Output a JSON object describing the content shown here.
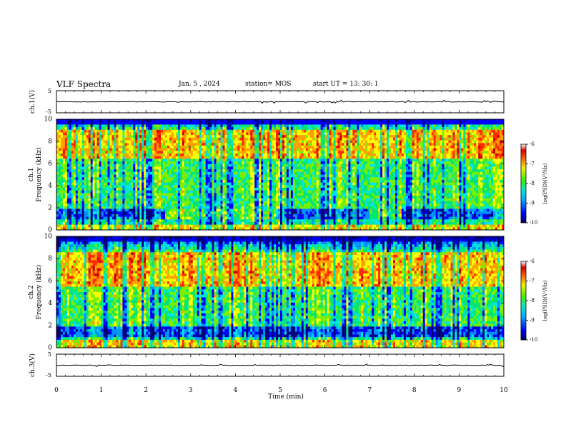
{
  "header": {
    "title": "VLF Spectra",
    "date": "Jan. 5 , 2024",
    "station": "station= MOS",
    "start_ut": "start UT = 13: 30: 1"
  },
  "chart_data": [
    {
      "type": "line",
      "ylabel": "ch.1(V)",
      "ylim": [
        -5,
        5
      ],
      "yticks": [
        "5",
        "-5"
      ],
      "xlim": [
        0,
        10
      ],
      "series": [
        {
          "values_approx": "near 0 V, low-amplitude trace"
        }
      ]
    },
    {
      "type": "heatmap",
      "ylabel": "ch.1\nFrequency (kHz)",
      "ylabel_lines": [
        "ch.1",
        "Frequency (kHz)"
      ],
      "yticks": [
        "0",
        "2",
        "4",
        "6",
        "8",
        "10"
      ],
      "ylim": [
        0,
        10
      ],
      "xlim": [
        0,
        10
      ],
      "colorbar": {
        "label": "log(PSD)(V²/Hz)",
        "ticks": [
          "-6",
          "-7",
          "-8",
          "-9",
          "-10"
        ],
        "range": [
          -10,
          -6
        ]
      },
      "features": {
        "strong_band_khz": [
          6.5,
          9
        ],
        "low_band_khz": [
          0,
          0.5
        ],
        "quiet_band_khz": [
          1,
          2
        ],
        "quiet_band_gaps_min": [
          [
            2.4,
            4.9
          ],
          [
            7.0,
            7.7
          ]
        ]
      }
    },
    {
      "type": "heatmap",
      "ylabel": "ch.2\nFrequency (kHz)",
      "ylabel_lines": [
        "ch.2",
        "Frequency (kHz)"
      ],
      "yticks": [
        "0",
        "2",
        "4",
        "6",
        "8",
        "10"
      ],
      "ylim": [
        0,
        10
      ],
      "xlim": [
        0,
        10
      ],
      "colorbar": {
        "label": "log(PSD)(V²/Hz)",
        "ticks": [
          "-6",
          "-7",
          "-8",
          "-9",
          "-10"
        ],
        "range": [
          -10,
          -6
        ]
      },
      "features": {
        "strong_band_khz": [
          5.5,
          8.5
        ],
        "low_band_khz": [
          0,
          0.8
        ],
        "quiet_band_khz": [
          1,
          2
        ]
      }
    },
    {
      "type": "line",
      "ylabel": "ch.3(V)",
      "ylim": [
        -5,
        5
      ],
      "yticks": [
        "5",
        "-5"
      ],
      "xlim": [
        0,
        10
      ],
      "xticks": [
        "0",
        "1",
        "2",
        "3",
        "4",
        "5",
        "6",
        "7",
        "8",
        "9",
        "10"
      ],
      "xlabel": "Time (min)",
      "series": [
        {
          "values_approx": "near 0 V, low-amplitude trace"
        }
      ]
    }
  ],
  "colors": {
    "colormap": [
      "#00007a",
      "#0000ff",
      "#0090ff",
      "#00e6e6",
      "#00e676",
      "#7af000",
      "#ffff00",
      "#ffa000",
      "#ff2a00",
      "#c80000"
    ]
  }
}
